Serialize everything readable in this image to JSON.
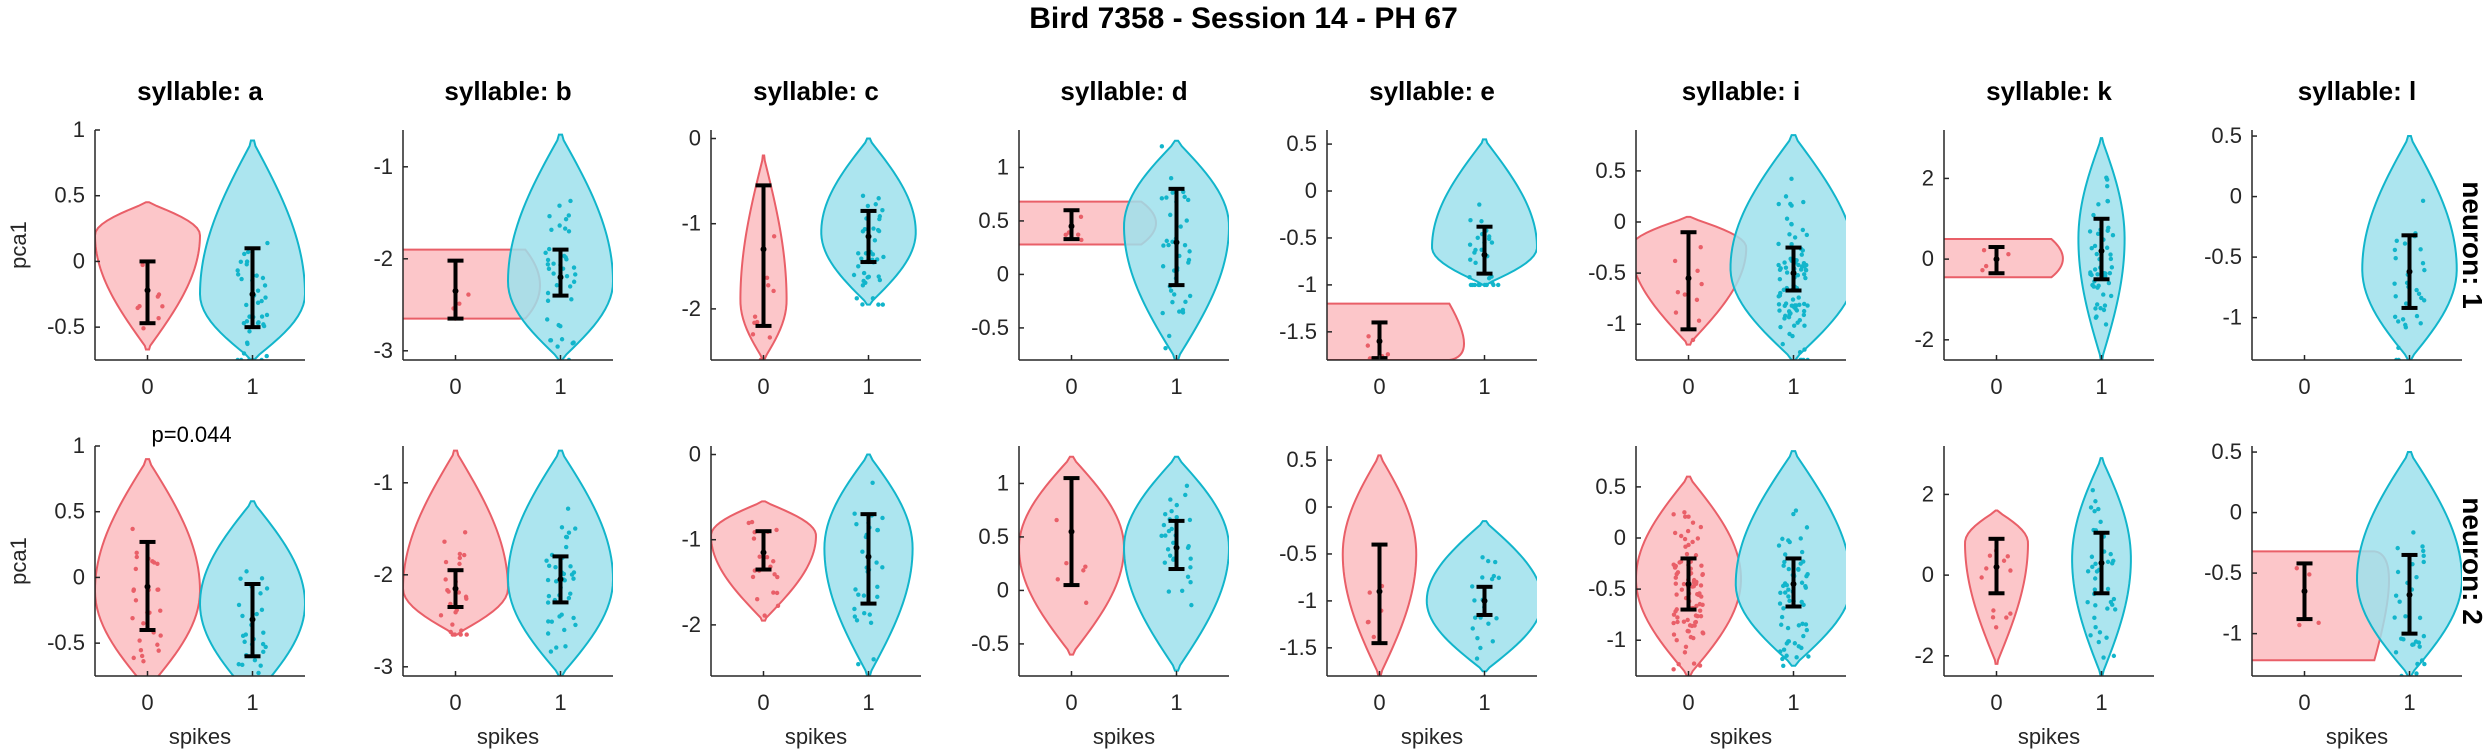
{
  "figure": {
    "title": "Bird 7358 - Session 14 - PH 67",
    "xlabel": "spikes",
    "ylabel": "pca1",
    "colors": {
      "spike0_fill": "#fbbcc0",
      "spike0_edge": "#e95f68",
      "spike1_fill": "#9ee1ec",
      "spike1_edge": "#12b5cb",
      "errorbar": "#000000",
      "axis": "#262626"
    }
  },
  "chart_data": {
    "type": "violin",
    "xlabel": "spikes",
    "ylabel": "pca1",
    "x_categories": [
      "0",
      "1"
    ],
    "columns": [
      {
        "title": "syllable: a",
        "ylim": [
          -0.75,
          1.0
        ],
        "yticks": [
          -0.5,
          0,
          0.5,
          1
        ],
        "yticklabels": [
          "-0.5",
          "0",
          "0.5",
          "1"
        ]
      },
      {
        "title": "syllable: b",
        "ylim": [
          -3.1,
          -0.6
        ],
        "yticks": [
          -3,
          -2,
          -1
        ],
        "yticklabels": [
          "-3",
          "-2",
          "-1"
        ]
      },
      {
        "title": "syllable: c",
        "ylim": [
          -2.6,
          0.1
        ],
        "yticks": [
          -2,
          -1,
          0
        ],
        "yticklabels": [
          "-2",
          "-1",
          "0"
        ]
      },
      {
        "title": "syllable: d",
        "ylim": [
          -0.8,
          1.35
        ],
        "yticks": [
          -0.5,
          0,
          0.5,
          1
        ],
        "yticklabels": [
          "-0.5",
          "0",
          "0.5",
          "1"
        ]
      },
      {
        "title": "syllable: e",
        "ylim": [
          -1.8,
          0.65
        ],
        "yticks": [
          -1.5,
          -1,
          -0.5,
          0,
          0.5
        ],
        "yticklabels": [
          "-1.5",
          "-1",
          "-0.5",
          "0",
          "0.5"
        ]
      },
      {
        "title": "syllable: i",
        "ylim": [
          -1.35,
          0.9
        ],
        "yticks": [
          -1,
          -0.5,
          0,
          0.5
        ],
        "yticklabels": [
          "-1",
          "-0.5",
          "0",
          "0.5"
        ]
      },
      {
        "title": "syllable: k",
        "ylim": [
          -2.5,
          3.2
        ],
        "yticks": [
          -2,
          0,
          2
        ],
        "yticklabels": [
          "-2",
          "0",
          "2"
        ]
      },
      {
        "title": "syllable: l",
        "ylim": [
          -1.35,
          0.55
        ],
        "yticks": [
          -1,
          -0.5,
          0,
          0.5
        ],
        "yticklabels": [
          "-1",
          "-0.5",
          "0",
          "0.5"
        ]
      }
    ],
    "rows": [
      {
        "label": "neuron: 1",
        "panels": [
          {
            "violins": [
              {
                "x": 0,
                "shape": "violin",
                "lo": -0.67,
                "hi": 0.45,
                "bulge": 0.2,
                "width": 0.5,
                "center": -0.22,
                "ci": [
                  -0.47,
                  0.0
                ],
                "n": 8
              },
              {
                "x": 1,
                "shape": "violin",
                "lo": -0.75,
                "hi": 0.92,
                "bulge": -0.25,
                "width": 0.5,
                "center": -0.25,
                "ci": [
                  -0.5,
                  0.1
                ],
                "n": 40
              }
            ],
            "annotation": ""
          },
          {
            "violins": [
              {
                "x": 0,
                "shape": "slab",
                "lo": -2.65,
                "hi": -1.9,
                "bulge": -2.3,
                "width": 0.7,
                "center": -2.35,
                "ci": [
                  -2.65,
                  -2.02
                ],
                "n": 4
              },
              {
                "x": 1,
                "shape": "violin",
                "lo": -3.1,
                "hi": -0.65,
                "bulge": -2.25,
                "width": 0.5,
                "center": -2.2,
                "ci": [
                  -2.4,
                  -1.9
                ],
                "n": 40
              }
            ],
            "annotation": ""
          },
          {
            "violins": [
              {
                "x": 0,
                "shape": "violin",
                "lo": -2.6,
                "hi": -0.2,
                "bulge": -1.9,
                "width": 0.22,
                "center": -1.3,
                "ci": [
                  -2.2,
                  -0.55
                ],
                "n": 10
              },
              {
                "x": 1,
                "shape": "violin",
                "lo": -1.95,
                "hi": 0.0,
                "bulge": -1.1,
                "width": 0.45,
                "center": -1.15,
                "ci": [
                  -1.45,
                  -0.85
                ],
                "n": 40
              }
            ],
            "annotation": ""
          },
          {
            "violins": [
              {
                "x": 0,
                "shape": "slab",
                "lo": 0.28,
                "hi": 0.68,
                "bulge": 0.48,
                "width": 0.7,
                "center": 0.45,
                "ci": [
                  0.33,
                  0.6
                ],
                "n": 5
              },
              {
                "x": 1,
                "shape": "violin",
                "lo": -0.8,
                "hi": 1.25,
                "bulge": 0.45,
                "width": 0.5,
                "center": 0.3,
                "ci": [
                  -0.1,
                  0.8
                ],
                "n": 40
              }
            ],
            "annotation": ""
          },
          {
            "violins": [
              {
                "x": 0,
                "shape": "slab",
                "lo": -1.8,
                "hi": -1.2,
                "bulge": -1.75,
                "width": 0.7,
                "center": -1.6,
                "ci": [
                  -1.78,
                  -1.4
                ],
                "n": 5
              },
              {
                "x": 1,
                "shape": "violin",
                "lo": -1.0,
                "hi": 0.55,
                "bulge": -0.6,
                "width": 0.5,
                "center": -0.68,
                "ci": [
                  -0.88,
                  -0.38
                ],
                "n": 30
              }
            ],
            "annotation": ""
          },
          {
            "violins": [
              {
                "x": 0,
                "shape": "violin",
                "lo": -1.2,
                "hi": 0.05,
                "bulge": -0.25,
                "width": 0.55,
                "center": -0.55,
                "ci": [
                  -1.05,
                  -0.1
                ],
                "n": 10
              },
              {
                "x": 1,
                "shape": "violin",
                "lo": -1.35,
                "hi": 0.85,
                "bulge": -0.45,
                "width": 0.6,
                "center": -0.5,
                "ci": [
                  -0.67,
                  -0.25
                ],
                "n": 90
              }
            ],
            "annotation": ""
          },
          {
            "violins": [
              {
                "x": 0,
                "shape": "slab",
                "lo": -0.45,
                "hi": 0.5,
                "bulge": 0.0,
                "width": 0.55,
                "center": 0.0,
                "ci": [
                  -0.35,
                  0.3
                ],
                "n": 4
              },
              {
                "x": 1,
                "shape": "violin",
                "lo": -2.5,
                "hi": 3.0,
                "bulge": 0.5,
                "width": 0.22,
                "center": 0.2,
                "ci": [
                  -0.5,
                  1.0
                ],
                "n": 50
              }
            ],
            "annotation": ""
          },
          {
            "violins": [
              {
                "x": 1,
                "shape": "violin",
                "lo": -1.35,
                "hi": 0.5,
                "bulge": -0.6,
                "width": 0.45,
                "center": -0.62,
                "ci": [
                  -0.92,
                  -0.32
                ],
                "n": 30
              }
            ],
            "annotation": ""
          }
        ]
      },
      {
        "label": "neuron: 2",
        "panels": [
          {
            "violins": [
              {
                "x": 0,
                "shape": "violin",
                "lo": -0.85,
                "hi": 0.9,
                "bulge": -0.1,
                "width": 0.5,
                "center": -0.07,
                "ci": [
                  -0.4,
                  0.27
                ],
                "n": 30
              },
              {
                "x": 1,
                "shape": "violin",
                "lo": -0.92,
                "hi": 0.58,
                "bulge": -0.2,
                "width": 0.5,
                "center": -0.32,
                "ci": [
                  -0.6,
                  -0.05
                ],
                "n": 30
              }
            ],
            "annotation": "p=0.044"
          },
          {
            "violins": [
              {
                "x": 0,
                "shape": "violin",
                "lo": -2.65,
                "hi": -0.65,
                "bulge": -2.15,
                "width": 0.5,
                "center": -2.15,
                "ci": [
                  -2.35,
                  -1.95
                ],
                "n": 25
              },
              {
                "x": 1,
                "shape": "violin",
                "lo": -3.1,
                "hi": -0.65,
                "bulge": -2.05,
                "width": 0.5,
                "center": -2.05,
                "ci": [
                  -2.3,
                  -1.8
                ],
                "n": 40
              }
            ],
            "annotation": ""
          },
          {
            "violins": [
              {
                "x": 0,
                "shape": "violin",
                "lo": -1.95,
                "hi": -0.55,
                "bulge": -0.95,
                "width": 0.5,
                "center": -1.15,
                "ci": [
                  -1.35,
                  -0.9
                ],
                "n": 20
              },
              {
                "x": 1,
                "shape": "violin",
                "lo": -2.6,
                "hi": 0.0,
                "bulge": -1.1,
                "width": 0.42,
                "center": -1.2,
                "ci": [
                  -1.75,
                  -0.7
                ],
                "n": 30
              }
            ],
            "annotation": ""
          },
          {
            "violins": [
              {
                "x": 0,
                "shape": "violin",
                "lo": -0.6,
                "hi": 1.25,
                "bulge": 0.4,
                "width": 0.5,
                "center": 0.55,
                "ci": [
                  0.05,
                  1.05
                ],
                "n": 6
              },
              {
                "x": 1,
                "shape": "violin",
                "lo": -0.75,
                "hi": 1.25,
                "bulge": 0.4,
                "width": 0.5,
                "center": 0.4,
                "ci": [
                  0.2,
                  0.65
                ],
                "n": 30
              }
            ],
            "annotation": ""
          },
          {
            "violins": [
              {
                "x": 0,
                "shape": "violin",
                "lo": -1.8,
                "hi": 0.55,
                "bulge": -0.5,
                "width": 0.35,
                "center": -0.9,
                "ci": [
                  -1.45,
                  -0.4
                ],
                "n": 6
              },
              {
                "x": 1,
                "shape": "violin",
                "lo": -1.75,
                "hi": -0.15,
                "bulge": -1.0,
                "width": 0.55,
                "center": -1.0,
                "ci": [
                  -1.15,
                  -0.85
                ],
                "n": 20
              }
            ],
            "annotation": ""
          },
          {
            "violins": [
              {
                "x": 0,
                "shape": "violin",
                "lo": -1.35,
                "hi": 0.6,
                "bulge": -0.4,
                "width": 0.5,
                "center": -0.45,
                "ci": [
                  -0.7,
                  -0.2
                ],
                "n": 90
              },
              {
                "x": 1,
                "shape": "violin",
                "lo": -1.25,
                "hi": 0.85,
                "bulge": -0.45,
                "width": 0.55,
                "center": -0.45,
                "ci": [
                  -0.67,
                  -0.2
                ],
                "n": 60
              }
            ],
            "annotation": ""
          },
          {
            "violins": [
              {
                "x": 0,
                "shape": "violin",
                "lo": -2.2,
                "hi": 1.6,
                "bulge": 0.8,
                "width": 0.3,
                "center": 0.2,
                "ci": [
                  -0.45,
                  0.9
                ],
                "n": 12
              },
              {
                "x": 1,
                "shape": "violin",
                "lo": -2.5,
                "hi": 2.9,
                "bulge": 0.4,
                "width": 0.28,
                "center": 0.3,
                "ci": [
                  -0.45,
                  1.05
                ],
                "n": 40
              }
            ],
            "annotation": ""
          },
          {
            "violins": [
              {
                "x": 0,
                "shape": "slab",
                "lo": -1.22,
                "hi": -0.32,
                "bulge": -0.35,
                "width": 0.7,
                "center": -0.65,
                "ci": [
                  -0.88,
                  -0.42
                ],
                "n": 4
              },
              {
                "x": 1,
                "shape": "violin",
                "lo": -1.35,
                "hi": 0.5,
                "bulge": -0.55,
                "width": 0.5,
                "center": -0.68,
                "ci": [
                  -1.0,
                  -0.35
                ],
                "n": 30
              }
            ],
            "annotation": ""
          }
        ]
      }
    ]
  }
}
